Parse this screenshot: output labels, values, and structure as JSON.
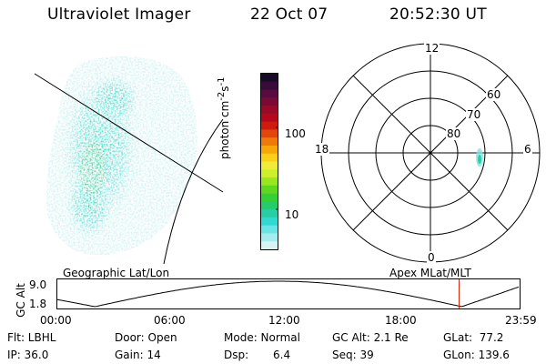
{
  "header": {
    "instrument": "Ultraviolet Imager",
    "date": "22 Oct 07",
    "time": "20:52:30 UT"
  },
  "colorbar": {
    "axis_label_html": "photon cm<sup>-2</sup>s<sup>-1</sup>",
    "ticks": [
      {
        "label": "100",
        "value": 100
      },
      {
        "label": "10",
        "value": 10
      }
    ],
    "colors": [
      "#1a0a2a",
      "#3a0a38",
      "#5a0b3d",
      "#7a0a35",
      "#9a0a28",
      "#b5081a",
      "#cf1a0e",
      "#e2470a",
      "#ee7a08",
      "#f6a80a",
      "#fad119",
      "#f0ed3a",
      "#cdf02c",
      "#97e81f",
      "#5fd91f",
      "#33d136",
      "#25cc6c",
      "#26cfa6",
      "#30d9d2",
      "#6ce3e4",
      "#a7ecec",
      "#d8f3f3"
    ]
  },
  "polar_plot": {
    "mlt_labels": {
      "top": "12",
      "bottom": "0",
      "left": "18",
      "right": "6"
    },
    "lat_labels": [
      "60",
      "70",
      "80"
    ]
  },
  "timeline": {
    "left_title": "Geographic Lat/Lon",
    "right_title": "Apex  MLat/MLT",
    "y_axis_label": "GC Alt",
    "y_max": "9.0",
    "y_min": "1.8",
    "x_ticks": [
      "00:00",
      "06:00",
      "12:00",
      "18:00",
      "23:59"
    ],
    "marker_time": "20:52",
    "marker_color": "#cc2200"
  },
  "status": {
    "flt": "Flt: LBHL",
    "ip": "IP: 36.0",
    "door": "Door: Open",
    "gain": "Gain: 14",
    "mode": "Mode: Normal",
    "dsp_label": "Dsp:",
    "dsp_value": "6.4",
    "gc_alt": "GC Alt: 2.1 Re",
    "seq": "Seq: 39",
    "glat": "GLat:  77.2",
    "glon": "GLon: 139.6"
  }
}
